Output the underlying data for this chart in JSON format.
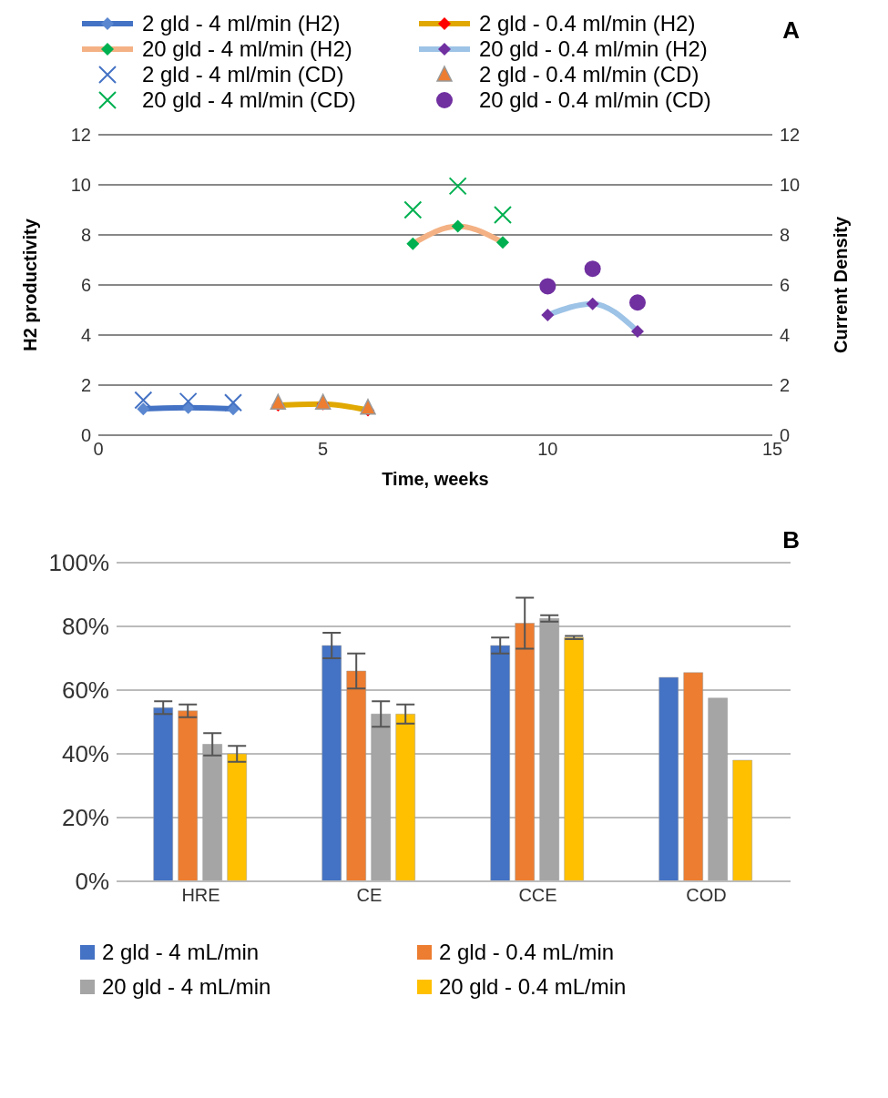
{
  "chart_data": [
    {
      "type": "line",
      "title": "A",
      "xlabel": "Time, weeks",
      "ylabel": "H2 productivity",
      "y2label": "Current Density",
      "xlim": [
        0,
        15
      ],
      "xticks": [
        0,
        5,
        10,
        15
      ],
      "ylim": [
        0,
        12
      ],
      "yticks": [
        0,
        2,
        4,
        6,
        8,
        10,
        12
      ],
      "y2lim": [
        0,
        12
      ],
      "y2ticks": [
        0,
        2,
        4,
        6,
        8,
        10,
        12
      ],
      "grid": "y",
      "legend": "top",
      "series": [
        {
          "name": "2 gld - 4 ml/min (H2)",
          "type": "line",
          "color": "#4472c4",
          "colors": [
            "#5b87d0",
            "#5b87d0",
            "#5b87d0"
          ],
          "marker": "diamond",
          "x": [
            1,
            2,
            3
          ],
          "values": [
            1.05,
            1.1,
            1.05
          ]
        },
        {
          "name": "2 gld - 0.4 ml/min (H2)",
          "type": "line",
          "color": "#e0a800",
          "colors": [
            "#ff0000",
            "#ff0000",
            "#ff0000"
          ],
          "marker": "diamond",
          "x": [
            4,
            5,
            6
          ],
          "values": [
            1.2,
            1.25,
            1.0
          ]
        },
        {
          "name": "20 gld - 4 ml/min (H2)",
          "type": "line",
          "color": "#f4b183",
          "colors": [
            "#00b050",
            "#00b050",
            "#00b050"
          ],
          "marker": "diamond",
          "x": [
            7,
            8,
            9
          ],
          "values": [
            7.65,
            8.35,
            7.7
          ]
        },
        {
          "name": "20 gld - 0.4 ml/min (H2)",
          "type": "line",
          "color": "#9dc3e6",
          "colors": [
            "#7030a0",
            "#7030a0",
            "#7030a0"
          ],
          "marker": "diamond",
          "x": [
            10,
            11,
            12
          ],
          "values": [
            4.8,
            5.25,
            4.15
          ]
        },
        {
          "name": "2 gld - 4 ml/min (CD)",
          "type": "scatter",
          "color": "#4472c4",
          "marker": "cross",
          "axis": "y2",
          "x": [
            1,
            2,
            3
          ],
          "values": [
            1.4,
            1.35,
            1.3
          ]
        },
        {
          "name": "2 gld - 0.4 ml/min (CD)",
          "type": "scatter",
          "color": "#ed7d31",
          "marker": "triangle",
          "axis": "y2",
          "x": [
            4,
            5,
            6
          ],
          "values": [
            1.3,
            1.3,
            1.1
          ]
        },
        {
          "name": "20 gld - 4 ml/min (CD)",
          "type": "scatter",
          "color": "#00b050",
          "marker": "cross",
          "axis": "y2",
          "x": [
            7,
            8,
            9
          ],
          "values": [
            9.0,
            9.95,
            8.8
          ]
        },
        {
          "name": "20 gld - 0.4 ml/min (CD)",
          "type": "scatter",
          "color": "#7030a0",
          "marker": "circle",
          "axis": "y2",
          "x": [
            10,
            11,
            12
          ],
          "values": [
            5.95,
            6.65,
            5.3
          ]
        }
      ]
    },
    {
      "type": "bar",
      "title": "B",
      "categories": [
        "HRE",
        "CE",
        "CCE",
        "COD"
      ],
      "ylim": [
        0,
        100
      ],
      "yticks": [
        {
          "value": 0,
          "label": "0%"
        },
        {
          "value": 20,
          "label": "20%"
        },
        {
          "value": 40,
          "label": "40%"
        },
        {
          "value": 60,
          "label": "60%"
        },
        {
          "value": 80,
          "label": "80%"
        },
        {
          "value": 100,
          "label": "100%"
        }
      ],
      "grid": "y",
      "legend": "bottom",
      "series": [
        {
          "name": "2 gld - 4 mL/min",
          "color": "#4472c4",
          "values": [
            54.5,
            74,
            74,
            64
          ],
          "errors": [
            2,
            4,
            2.5,
            null
          ]
        },
        {
          "name": "2 gld - 0.4 mL/min",
          "color": "#ed7d31",
          "values": [
            53.5,
            66,
            81,
            65.5
          ],
          "errors": [
            2,
            5.5,
            8,
            null
          ]
        },
        {
          "name": "20 gld - 4 mL/min",
          "color": "#a5a5a5",
          "values": [
            43,
            52.5,
            82.5,
            57.5
          ],
          "errors": [
            3.5,
            4,
            1,
            null
          ]
        },
        {
          "name": "20 gld - 0.4 mL/min",
          "color": "#ffc000",
          "values": [
            40,
            52.5,
            76.5,
            38
          ],
          "errors": [
            2.5,
            3,
            0.5,
            null
          ]
        }
      ]
    }
  ]
}
